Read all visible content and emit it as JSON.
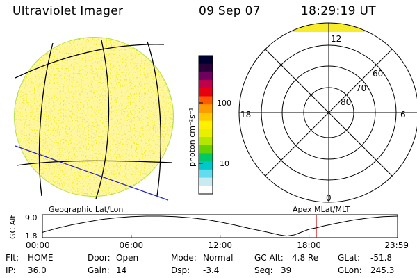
{
  "header": {
    "instrument": "Ultraviolet Imager",
    "date": "09 Sep 07",
    "time": "18:29:19 UT"
  },
  "colors": {
    "fill_main": "#f6ec2a",
    "fill_alt": "#fff6a0",
    "fill_edge": "#b5e04a",
    "lines": "#000000",
    "blue_line": "#2222cc",
    "marker": "#d00000"
  },
  "colorbar": {
    "unit_label": "photon cm⁻²s⁻¹",
    "ticks": [
      {
        "label": "100",
        "value": 100
      },
      {
        "label": "10",
        "value": 10
      }
    ],
    "colors": [
      "#000030",
      "#2a0038",
      "#700060",
      "#c0004a",
      "#e60010",
      "#ff5a00",
      "#ff9a00",
      "#ffc800",
      "#fff000",
      "#e8f000",
      "#b4e600",
      "#64d200",
      "#00c864",
      "#00c8c8",
      "#64dcf0",
      "#c8eaf0",
      "#ffffff"
    ]
  },
  "polar": {
    "radial_labels": [
      "60",
      "70",
      "80"
    ],
    "mlt_labels": {
      "top": "12",
      "left": "18",
      "right": "6",
      "bottom": "0"
    }
  },
  "map_label_left": "Geographic Lat/Lon",
  "map_label_right": "Apex MLat/MLT",
  "chart_data": {
    "type": "line",
    "ylabel": "GC Alt",
    "ylim": [
      1.8,
      9.0
    ],
    "ytick_labels": [
      "9.0",
      "1.8"
    ],
    "xtick_labels": [
      "00:00",
      "06:00",
      "12:00",
      "18:00",
      "23:59"
    ],
    "series": [
      {
        "x": [
          0,
          1,
          2,
          3,
          4,
          5,
          6,
          7,
          8,
          9,
          10,
          11,
          12,
          13,
          14,
          15,
          16,
          16.5,
          17,
          17.5,
          18,
          18.49,
          19,
          20,
          21,
          22,
          23,
          23.98
        ],
        "values": [
          3.2,
          4.7,
          5.9,
          6.9,
          7.8,
          8.4,
          8.8,
          9.0,
          9.0,
          8.8,
          8.4,
          7.8,
          6.9,
          5.8,
          4.6,
          3.5,
          2.3,
          1.9,
          2.3,
          3.3,
          4.3,
          4.8,
          5.5,
          6.6,
          7.6,
          8.3,
          8.8,
          9.0
        ]
      }
    ],
    "current_time_marker": 18.49
  },
  "footer": {
    "col1": {
      "label1": "Flt:",
      "value1": "HOME",
      "label2": "IP:",
      "value2": "36.0"
    },
    "col2": {
      "label1": "Door:",
      "value1": "Open",
      "label2": "Gain:",
      "value2": "14"
    },
    "col3": {
      "label1": "Mode:",
      "value1": "Normal",
      "label2": "Dsp:",
      "value2": "-3.4"
    },
    "col4": {
      "label1": "GC Alt:",
      "value1": "4.8 Re",
      "label2": "Seq:",
      "value2": "39"
    },
    "col5": {
      "label1": "GLat:",
      "value1": "-51.8",
      "label2": "GLon:",
      "value2": "245.3"
    }
  }
}
